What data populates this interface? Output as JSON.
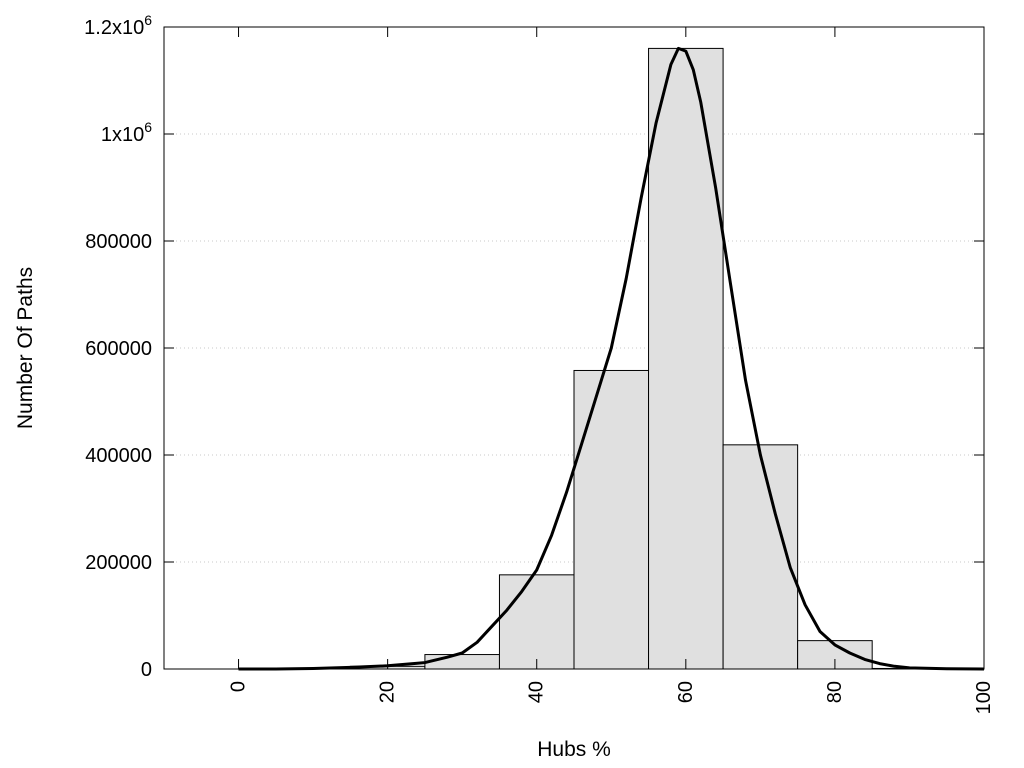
{
  "chart_data": {
    "type": "bar",
    "xlabel": "Hubs %",
    "ylabel": "Number Of Paths",
    "xlim": [
      -10,
      100
    ],
    "ylim": [
      0,
      1200000
    ],
    "x_ticks": [
      {
        "value": 0,
        "label": "0"
      },
      {
        "value": 20,
        "label": "20"
      },
      {
        "value": 40,
        "label": "40"
      },
      {
        "value": 60,
        "label": "60"
      },
      {
        "value": 80,
        "label": "80"
      },
      {
        "value": 100,
        "label": "100"
      }
    ],
    "y_ticks": [
      {
        "value": 0,
        "label": "0",
        "mantissa": "0",
        "exponent": ""
      },
      {
        "value": 200000,
        "label": "200000",
        "mantissa": "200000",
        "exponent": ""
      },
      {
        "value": 400000,
        "label": "400000",
        "mantissa": "400000",
        "exponent": ""
      },
      {
        "value": 600000,
        "label": "600000",
        "mantissa": "600000",
        "exponent": ""
      },
      {
        "value": 800000,
        "label": "800000",
        "mantissa": "800000",
        "exponent": ""
      },
      {
        "value": 1000000,
        "label": "1x10^6",
        "mantissa": "1x10",
        "exponent": "6"
      },
      {
        "value": 1200000,
        "label": "1.2x10^6",
        "mantissa": "1.2x10",
        "exponent": "6"
      }
    ],
    "bars": [
      {
        "x": 0,
        "value": 0
      },
      {
        "x": 10,
        "value": 0
      },
      {
        "x": 20,
        "value": 5000
      },
      {
        "x": 30,
        "value": 27000
      },
      {
        "x": 40,
        "value": 176000
      },
      {
        "x": 50,
        "value": 558000
      },
      {
        "x": 60,
        "value": 1160000
      },
      {
        "x": 70,
        "value": 419000
      },
      {
        "x": 80,
        "value": 53000
      },
      {
        "x": 90,
        "value": 1000
      }
    ],
    "bar_width": 10,
    "curve": {
      "x": [
        0,
        5,
        10,
        15,
        20,
        25,
        28,
        30,
        32,
        34,
        36,
        38,
        40,
        42,
        44,
        46,
        48,
        50,
        52,
        54,
        56,
        58,
        59,
        60,
        61,
        62,
        64,
        66,
        68,
        70,
        72,
        74,
        76,
        78,
        80,
        82,
        84,
        86,
        88,
        90,
        95,
        100
      ],
      "y": [
        0,
        0,
        1000,
        3000,
        6000,
        12000,
        22000,
        30000,
        50000,
        80000,
        110000,
        145000,
        185000,
        250000,
        330000,
        420000,
        510000,
        600000,
        730000,
        880000,
        1020000,
        1130000,
        1160000,
        1155000,
        1120000,
        1060000,
        900000,
        720000,
        540000,
        400000,
        290000,
        190000,
        120000,
        70000,
        45000,
        30000,
        18000,
        10000,
        5000,
        2000,
        500,
        0
      ]
    },
    "grid": "horizontal-dotted",
    "legend": "none"
  }
}
